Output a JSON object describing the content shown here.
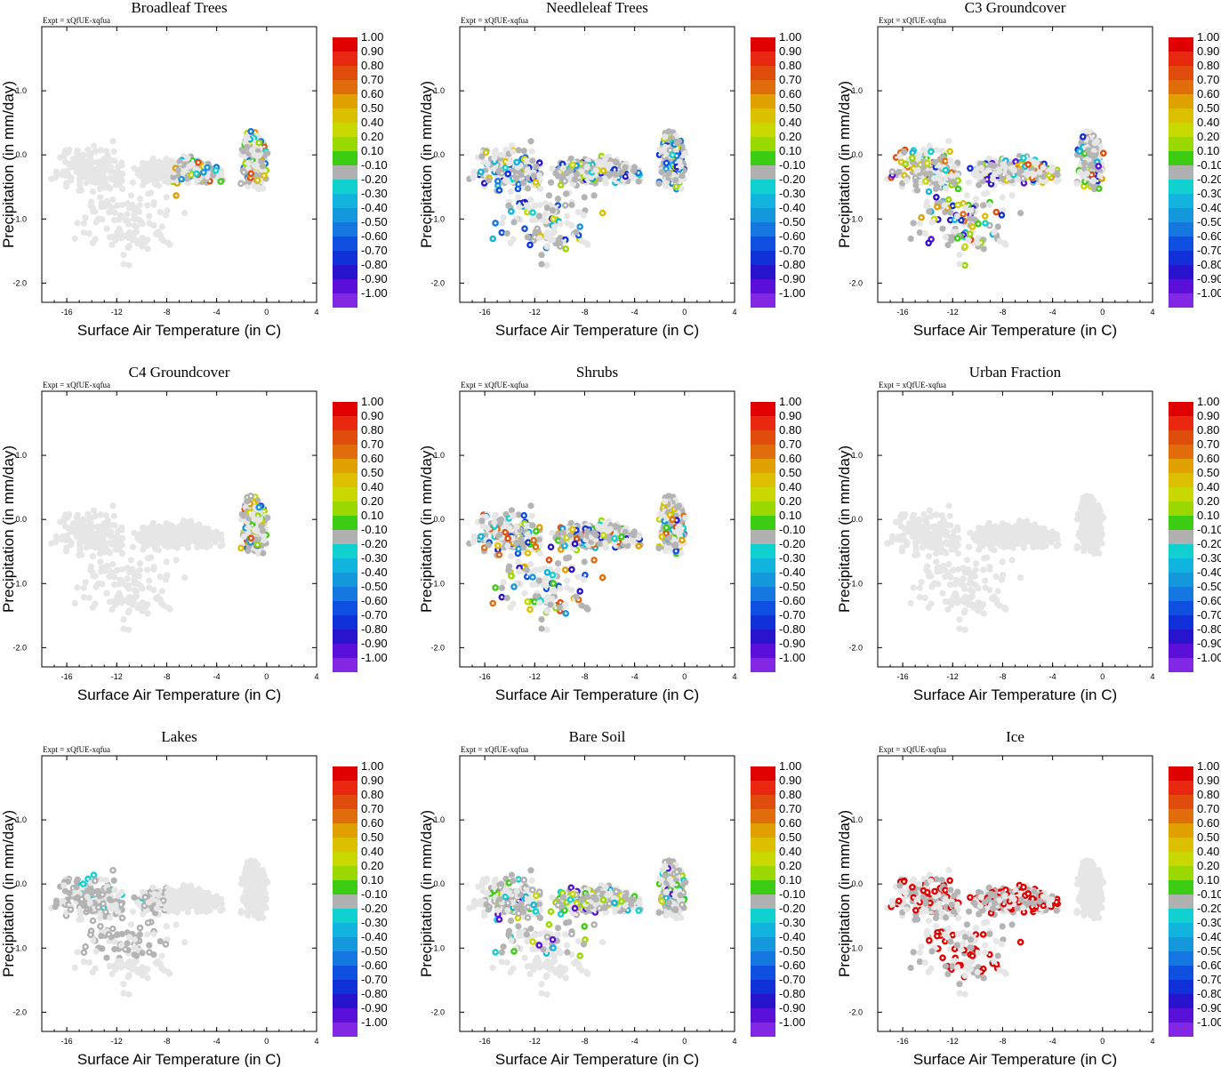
{
  "figure": {
    "expt_label": "Expt = xQfUE-xqfua",
    "xlabel": "Surface Air Temperature (in C)",
    "ylabel": "Precipitation (in mm/day)",
    "xticks": [
      "-16",
      "-12",
      "-8",
      "-4",
      "0",
      "4"
    ],
    "yticks": [
      "1.0",
      "0.0",
      "-1.0",
      "-2.0"
    ]
  },
  "colorbar": {
    "labels": [
      "1.00",
      "0.90",
      "0.80",
      "0.70",
      "0.60",
      "0.50",
      "0.40",
      "0.20",
      "0.10",
      "-0.10",
      "-0.20",
      "-0.30",
      "-0.40",
      "-0.50",
      "-0.60",
      "-0.70",
      "-0.80",
      "-0.90",
      "-1.00"
    ],
    "colors": [
      "#e00000",
      "#e82810",
      "#e04c0c",
      "#e06c0c",
      "#e0a000",
      "#dcc000",
      "#c8d800",
      "#9ad800",
      "#3ccc14",
      "#b0b0b0",
      "#10d0d0",
      "#10b4dc",
      "#1498dc",
      "#1478e0",
      "#1050e0",
      "#1030d8",
      "#2814cc",
      "#5a10d8",
      "#8228e4"
    ]
  },
  "chart_data": [
    {
      "type": "scatter",
      "title": "Broadleaf Trees",
      "xlabel": "Surface Air Temperature (in C)",
      "ylabel": "Precipitation (in mm/day)",
      "xlim": [
        -18,
        4
      ],
      "ylim": [
        -2.3,
        2.0
      ],
      "colored_zone": {
        "x": [
          -7.5,
          1.2
        ],
        "y": [
          -1.2,
          1.0
        ]
      },
      "colored_palette": [
        8,
        9,
        10,
        11,
        12,
        7,
        6,
        5,
        4,
        2,
        13
      ]
    },
    {
      "type": "scatter",
      "title": "Needleleaf Trees",
      "xlabel": "Surface Air Temperature (in C)",
      "ylabel": "Precipitation (in mm/day)",
      "xlim": [
        -18,
        4
      ],
      "ylim": [
        -2.3,
        2.0
      ],
      "colored_zone": {
        "x": [
          -17.5,
          0.5
        ],
        "y": [
          -2.2,
          1.0
        ]
      },
      "colored_palette": [
        13,
        14,
        15,
        16,
        12,
        11,
        10,
        9,
        7,
        6,
        5
      ]
    },
    {
      "type": "scatter",
      "title": "C3 Groundcover",
      "xlabel": "Surface Air Temperature (in C)",
      "ylabel": "Precipitation (in mm/day)",
      "xlim": [
        -18,
        4
      ],
      "ylim": [
        -2.3,
        2.0
      ],
      "colored_zone": {
        "x": [
          -17.8,
          0.5
        ],
        "y": [
          -2.2,
          1.0
        ]
      },
      "colored_palette": [
        10,
        11,
        17,
        16,
        15,
        8,
        7,
        6,
        5,
        4,
        3,
        2,
        9
      ]
    },
    {
      "type": "scatter",
      "title": "C4 Groundcover",
      "xlabel": "Surface Air Temperature (in C)",
      "ylabel": "Precipitation (in mm/day)",
      "xlim": [
        -18,
        4
      ],
      "ylim": [
        -2.3,
        2.0
      ],
      "colored_zone": {
        "x": [
          -2.5,
          1.2
        ],
        "y": [
          -1.2,
          1.0
        ]
      },
      "colored_palette": [
        8,
        7,
        6,
        5,
        4,
        9,
        12,
        14,
        2
      ]
    },
    {
      "type": "scatter",
      "title": "Shrubs",
      "xlabel": "Surface Air Temperature (in C)",
      "ylabel": "Precipitation (in mm/day)",
      "xlim": [
        -18,
        4
      ],
      "ylim": [
        -2.3,
        2.0
      ],
      "colored_zone": {
        "x": [
          -17.8,
          1.0
        ],
        "y": [
          -2.2,
          1.0
        ]
      },
      "colored_palette": [
        14,
        15,
        16,
        12,
        11,
        10,
        3,
        4,
        2,
        5,
        7,
        8,
        6
      ]
    },
    {
      "type": "scatter",
      "title": "Urban Fraction",
      "xlabel": "Surface Air Temperature (in C)",
      "ylabel": "Precipitation (in mm/day)",
      "xlim": [
        -18,
        4
      ],
      "ylim": [
        -2.3,
        2.0
      ],
      "colored_zone": null,
      "colored_palette": []
    },
    {
      "type": "scatter",
      "title": "Lakes",
      "xlabel": "Surface Air Temperature (in C)",
      "ylabel": "Precipitation (in mm/day)",
      "xlim": [
        -18,
        4
      ],
      "ylim": [
        -2.3,
        2.0
      ],
      "colored_zone": {
        "x": [
          -17.0,
          -8.0
        ],
        "y": [
          -1.2,
          0.7
        ]
      },
      "colored_palette": [
        9,
        9,
        9,
        10
      ]
    },
    {
      "type": "scatter",
      "title": "Bare Soil",
      "xlabel": "Surface Air Temperature (in C)",
      "ylabel": "Precipitation (in mm/day)",
      "xlim": [
        -18,
        4
      ],
      "ylim": [
        -2.3,
        2.0
      ],
      "colored_zone": {
        "x": [
          -16.0,
          1.0
        ],
        "y": [
          -1.2,
          0.7
        ]
      },
      "colored_palette": [
        9,
        9,
        9,
        10,
        8,
        7,
        6,
        11,
        17
      ]
    },
    {
      "type": "scatter",
      "title": "Ice",
      "xlabel": "Surface Air Temperature (in C)",
      "ylabel": "Precipitation (in mm/day)",
      "xlim": [
        -18,
        4
      ],
      "ylim": [
        -2.3,
        2.0
      ],
      "colored_zone": {
        "x": [
          -17.8,
          -3.5
        ],
        "y": [
          -2.2,
          1.0
        ]
      },
      "colored_palette": [
        0
      ]
    }
  ]
}
